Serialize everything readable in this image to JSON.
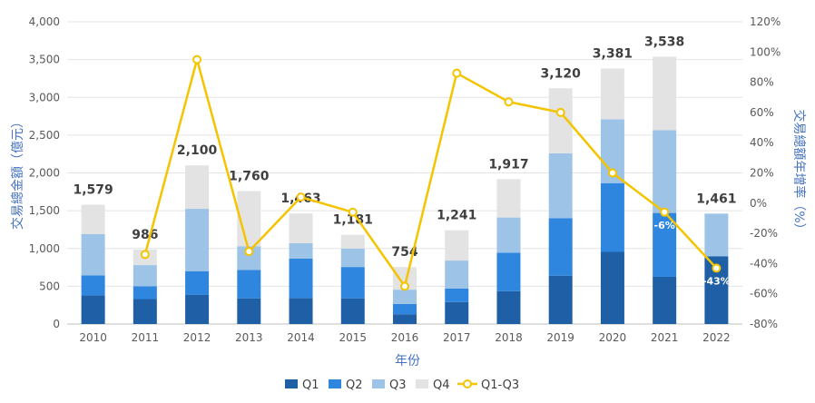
{
  "chart_data": {
    "type": "bar",
    "stacked": true,
    "categories": [
      "2010",
      "2011",
      "2012",
      "2013",
      "2014",
      "2015",
      "2016",
      "2017",
      "2018",
      "2019",
      "2020",
      "2021",
      "2022"
    ],
    "series": [
      {
        "name": "Q1",
        "color": "#1f5fa6",
        "values": [
          380,
          330,
          385,
          340,
          345,
          340,
          130,
          290,
          435,
          640,
          955,
          625,
          895
        ]
      },
      {
        "name": "Q2",
        "color": "#2e86de",
        "values": [
          265,
          170,
          315,
          375,
          520,
          415,
          135,
          180,
          510,
          760,
          910,
          845,
          0
        ]
      },
      {
        "name": "Q3",
        "color": "#9dc3e6",
        "values": [
          545,
          280,
          825,
          315,
          205,
          245,
          190,
          370,
          465,
          860,
          845,
          1095,
          566
        ]
      },
      {
        "name": "Q4",
        "color": "#e3e3e3",
        "values": [
          389,
          206,
          575,
          730,
          393,
          181,
          299,
          401,
          507,
          860,
          671,
          973,
          0
        ]
      }
    ],
    "totals": [
      1579,
      986,
      2100,
      1760,
      1463,
      1181,
      754,
      1241,
      1917,
      3120,
      3381,
      3538,
      1461
    ],
    "total_labels": [
      "1,579",
      "986",
      "2,100",
      "1,760",
      "1,463",
      "1,181",
      "754",
      "1,241",
      "1,917",
      "3,120",
      "3,381",
      "3,538",
      "1,461"
    ],
    "line": {
      "name": "Q1-Q3",
      "color": "#f5c400",
      "values": [
        null,
        -34,
        95,
        -32,
        4,
        -6,
        -55,
        86,
        67,
        60,
        20,
        -6,
        -43
      ],
      "labels": {
        "2021": "-6%",
        "2022": "-43%"
      }
    },
    "xlabel": "年份",
    "ylabel_left": "交易總金額（億元）",
    "ylabel_right": "交易總額年增率（%）",
    "ylim_left": [
      0,
      4000
    ],
    "ylim_right": [
      -80,
      120
    ],
    "yticks_left": [
      "0",
      "500",
      "1,000",
      "1,500",
      "2,000",
      "2,500",
      "3,000",
      "3,500",
      "4,000"
    ],
    "yticks_right": [
      "-80%",
      "-60%",
      "-40%",
      "-20%",
      "0%",
      "20%",
      "40%",
      "60%",
      "80%",
      "100%",
      "120%"
    ],
    "legend": [
      "Q1",
      "Q2",
      "Q3",
      "Q4",
      "Q1-Q3"
    ],
    "legend_position": "bottom",
    "grid": true
  }
}
